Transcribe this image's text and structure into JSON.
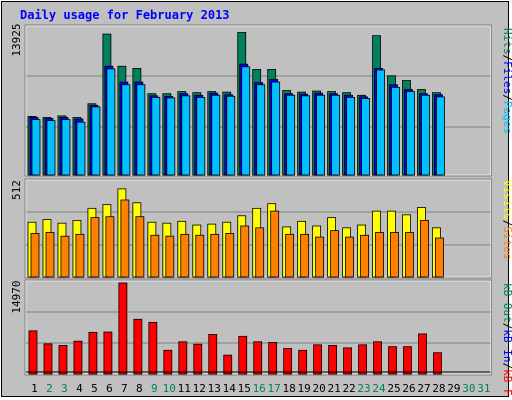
{
  "title": "Daily usage for February 2013",
  "colors": {
    "background": "#c0c0c0",
    "hits": "#00805c",
    "files": "#0000ff",
    "pages": "#00c0ff",
    "visits": "#ffff00",
    "sites": "#ff8000",
    "kb_in": "#0000ff",
    "kb_out": "#00805c",
    "kb_f": "#ff0000",
    "weekday_label": "#000000",
    "weekend_label": "#00805c"
  },
  "chart_data": [
    {
      "type": "bar",
      "categories": [
        "1",
        "2",
        "3",
        "4",
        "5",
        "6",
        "7",
        "8",
        "9",
        "10",
        "11",
        "12",
        "13",
        "14",
        "15",
        "16",
        "17",
        "18",
        "19",
        "20",
        "21",
        "22",
        "23",
        "24",
        "25",
        "26",
        "27",
        "28",
        "29",
        "30",
        "31"
      ],
      "weekend": [
        "2",
        "3",
        "9",
        "10",
        "16",
        "17",
        "23",
        "24",
        "30",
        "31"
      ],
      "max_label": "13925",
      "ymax": 13925,
      "legend": {
        "pages": "Pages",
        "files": "Files",
        "hits": "Hits",
        "sep": "/"
      },
      "series": [
        {
          "name": "Hits",
          "values": [
            5550,
            5450,
            5600,
            5450,
            6750,
            13350,
            10300,
            10100,
            7700,
            7700,
            7900,
            7800,
            7900,
            7850,
            13500,
            10000,
            10000,
            8000,
            7850,
            7950,
            7900,
            7800,
            7550,
            13200,
            9400,
            8950,
            8100,
            7800,
            0,
            0,
            0
          ]
        },
        {
          "name": "Files",
          "values": [
            5450,
            5350,
            5450,
            5300,
            6600,
            10300,
            8800,
            8800,
            7500,
            7450,
            7700,
            7550,
            7750,
            7600,
            10500,
            8750,
            9050,
            7700,
            7650,
            7750,
            7700,
            7550,
            7400,
            10100,
            8550,
            8100,
            7700,
            7600,
            0,
            0,
            0
          ]
        },
        {
          "name": "Pages",
          "values": [
            5250,
            5150,
            5250,
            5000,
            6450,
            10050,
            8550,
            8550,
            7350,
            7300,
            7500,
            7350,
            7550,
            7450,
            10250,
            8550,
            8800,
            7550,
            7500,
            7550,
            7550,
            7350,
            7250,
            9950,
            8300,
            7900,
            7550,
            7400,
            0,
            0,
            0
          ]
        }
      ]
    },
    {
      "type": "bar",
      "categories": [
        "1",
        "2",
        "3",
        "4",
        "5",
        "6",
        "7",
        "8",
        "9",
        "10",
        "11",
        "12",
        "13",
        "14",
        "15",
        "16",
        "17",
        "18",
        "19",
        "20",
        "21",
        "22",
        "23",
        "24",
        "25",
        "26",
        "27",
        "28",
        "29",
        "30",
        "31"
      ],
      "max_label": "512",
      "ymax": 512,
      "legend": {
        "visits": "Visits",
        "sites": "Sites",
        "sep": "/"
      },
      "series": [
        {
          "name": "Visits",
          "values": [
            295,
            310,
            290,
            305,
            370,
            390,
            475,
            400,
            295,
            290,
            300,
            280,
            285,
            295,
            330,
            370,
            395,
            270,
            300,
            275,
            320,
            265,
            280,
            355,
            355,
            335,
            375,
            265,
            0,
            0,
            0
          ]
        },
        {
          "name": "Sites",
          "values": [
            235,
            240,
            220,
            230,
            320,
            325,
            415,
            325,
            225,
            220,
            230,
            225,
            230,
            235,
            275,
            265,
            355,
            230,
            230,
            215,
            250,
            215,
            225,
            240,
            240,
            240,
            305,
            210,
            0,
            0,
            0
          ]
        }
      ]
    },
    {
      "type": "bar",
      "categories": [
        "1",
        "2",
        "3",
        "4",
        "5",
        "6",
        "7",
        "8",
        "9",
        "10",
        "11",
        "12",
        "13",
        "14",
        "15",
        "16",
        "17",
        "18",
        "19",
        "20",
        "21",
        "22",
        "23",
        "24",
        "25",
        "26",
        "27",
        "28",
        "29",
        "30",
        "31"
      ],
      "max_label": "14970",
      "ymax": 14970,
      "legend": {
        "kbin": "kB In",
        "kbout": "kB Out",
        "kbf": "kB F",
        "sep": "/"
      },
      "series": [
        {
          "name": "kB F",
          "values": [
            7100,
            4950,
            4700,
            5400,
            6850,
            6900,
            14970,
            9000,
            8500,
            3900,
            5300,
            4900,
            6500,
            3100,
            6200,
            5300,
            5200,
            4200,
            3900,
            4800,
            4700,
            4300,
            4800,
            5300,
            4500,
            4500,
            6600,
            3500,
            0,
            0,
            0
          ]
        }
      ]
    }
  ]
}
